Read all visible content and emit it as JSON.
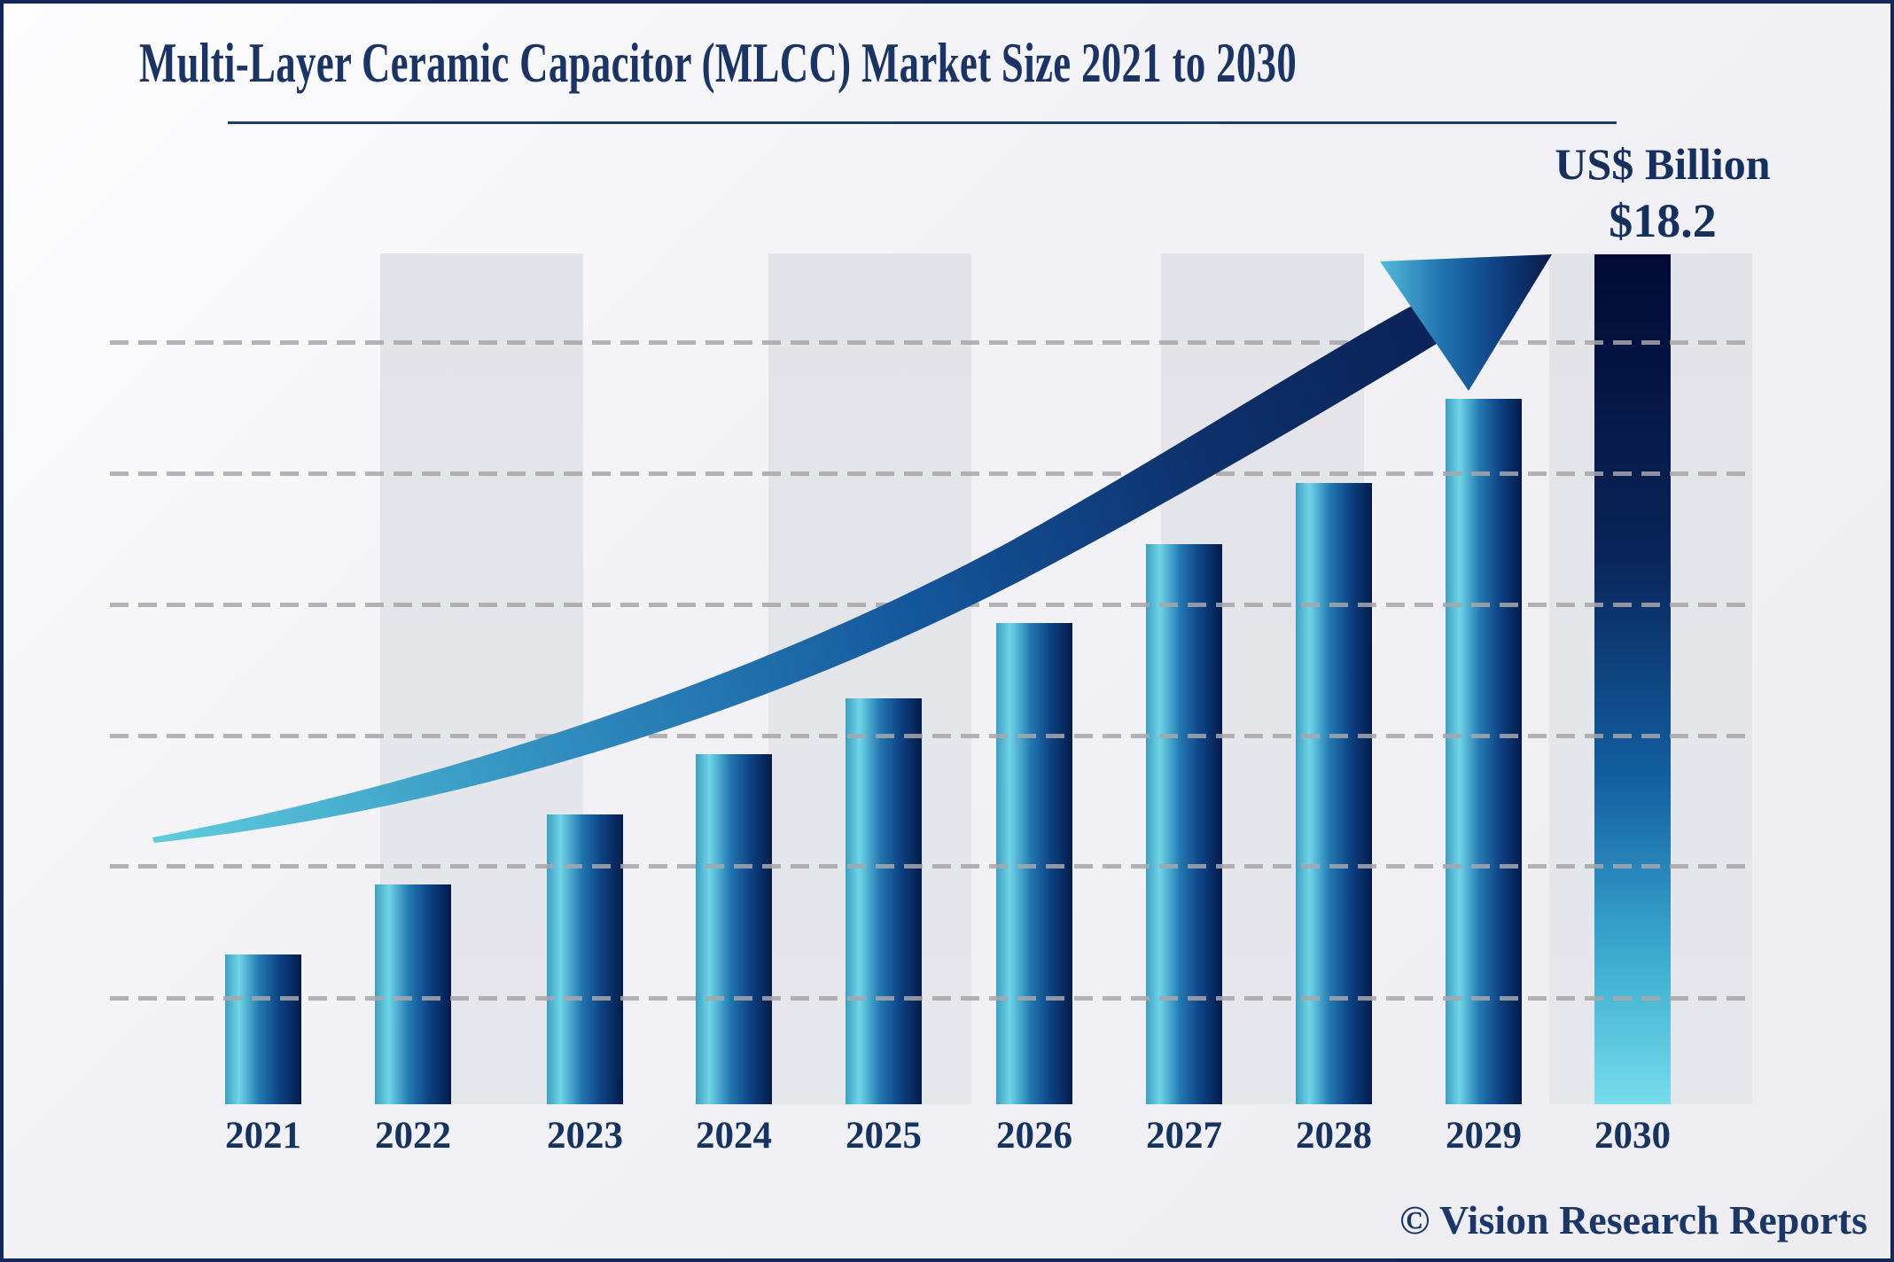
{
  "title": "Multi-Layer Ceramic Capacitor (MLCC) Market Size 2021 to 2030",
  "annotation": {
    "unit": "US$ Billion",
    "value": "$18.2"
  },
  "watermark": "© Vision Research Reports",
  "colors": {
    "navy_text": "#1b3464",
    "border": "#15265a",
    "background": "#f2f2f6",
    "band_gray": "#e4e5e9",
    "grid_dash": "#a7a7ab",
    "bar_cyan": "#70d5e7",
    "bar_mid_blue": "#2278b2",
    "bar_dark_navy": "#041b4a",
    "arrow_tail_cyan": "#5ecbdc",
    "arrow_head_navy": "#0a1c4e"
  },
  "chart_data": {
    "type": "bar",
    "title": "Multi-Layer Ceramic Capacitor (MLCC) Market Size 2021 to 2030",
    "categories": [
      "2021",
      "2022",
      "2023",
      "2024",
      "2025",
      "2026",
      "2027",
      "2028",
      "2029",
      "2030"
    ],
    "values": [
      3.2,
      4.7,
      6.2,
      7.5,
      8.7,
      10.3,
      12.0,
      13.3,
      15.1,
      18.2
    ],
    "unit": "US$ Billion",
    "labeled_value": {
      "category": "2030",
      "value": 18.2,
      "label": "$18.2"
    },
    "xlabel": "",
    "ylabel": "",
    "ylim": [
      0,
      20
    ],
    "gridlines": {
      "horizontal": 6,
      "style": "dashed",
      "vertical": false
    },
    "legend": "none",
    "annotations": [
      "upward curved growth arrow from 2021 to 2030"
    ]
  }
}
